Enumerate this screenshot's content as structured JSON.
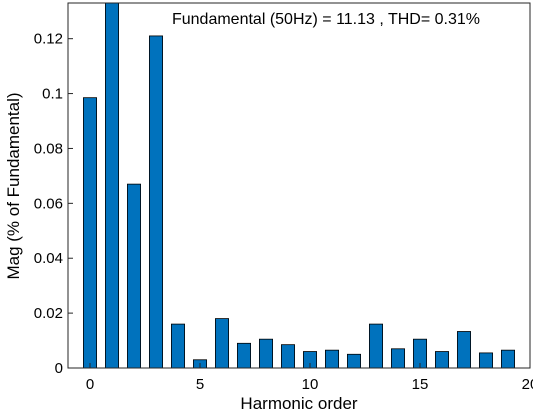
{
  "chart_data": {
    "type": "bar",
    "title": "Fundamental (50Hz) = 11.13 , THD= 0.31%",
    "xlabel": "Harmonic order",
    "ylabel": "Mag (% of Fundamental)",
    "x": [
      0,
      1,
      2,
      3,
      4,
      5,
      6,
      7,
      8,
      9,
      10,
      11,
      12,
      13,
      14,
      15,
      16,
      17,
      18,
      19
    ],
    "values": [
      0.0985,
      0.135,
      0.067,
      0.121,
      0.016,
      0.003,
      0.018,
      0.009,
      0.0105,
      0.0085,
      0.006,
      0.0065,
      0.005,
      0.016,
      0.007,
      0.0105,
      0.006,
      0.0133,
      0.0055,
      0.0065
    ],
    "xlim": [
      -1,
      20
    ],
    "ylim": [
      0,
      0.133
    ],
    "xticks": [
      "0",
      "5",
      "10",
      "15",
      "20"
    ],
    "yticks": [
      "0",
      "0.02",
      "0.04",
      "0.06",
      "0.08",
      "0.1",
      "0.12"
    ],
    "bar_color": "#0072BD",
    "grid": false
  }
}
